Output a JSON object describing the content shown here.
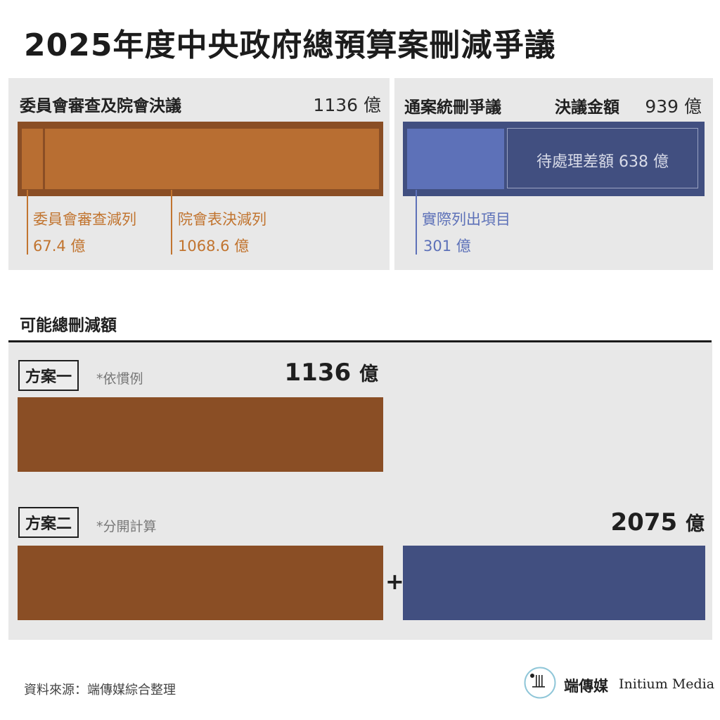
{
  "title": "2025年度中央政府總預算案刪減爭議",
  "left_panel": {
    "label": "委員會審查及院會決議",
    "total": "1136 億",
    "segments": [
      {
        "label": "委員會審查減列",
        "value_text": "67.4 億"
      },
      {
        "label": "院會表決減列",
        "value_text": "1068.6 億"
      }
    ]
  },
  "right_panel": {
    "label": "通案統刪爭議",
    "total_label": "決議金額",
    "total": "939 億",
    "pending_label": "待處理差額 638 億",
    "listed_label": "實際列出項目",
    "listed_value": "301 億"
  },
  "section_title": "可能總刪減額",
  "plans": [
    {
      "name": "方案一",
      "note": "*依慣例",
      "total_num": "1136",
      "total_unit": "億"
    },
    {
      "name": "方案二",
      "note": "*分開計算",
      "total_num": "2075",
      "total_unit": "億",
      "plus": "+"
    }
  ],
  "footer": {
    "source": "資料來源：端傳媒綜合整理",
    "logo_cn": "端傳媒",
    "logo_en": "Initium Media"
  },
  "colors": {
    "orange": "#b86e32",
    "brown": "#8a4e25",
    "blue": "#414f80",
    "light_blue": "#5d71b8"
  },
  "chart_data": [
    {
      "type": "bar",
      "stacked": true,
      "categories": [
        "委員會審查及院會決議"
      ],
      "series": [
        {
          "name": "委員會審查減列",
          "values": [
            67.4
          ]
        },
        {
          "name": "院會表決減列",
          "values": [
            1068.6
          ]
        }
      ],
      "total": 1136
    },
    {
      "type": "bar",
      "stacked": true,
      "categories": [
        "通案統刪爭議"
      ],
      "series": [
        {
          "name": "實際列出項目",
          "values": [
            301
          ]
        },
        {
          "name": "待處理差額",
          "values": [
            638
          ]
        }
      ],
      "total": 939
    },
    {
      "type": "bar",
      "stacked": true,
      "categories": [
        "方案一",
        "方案二"
      ],
      "series": [
        {
          "name": "委員會審查及院會決議",
          "values": [
            1136,
            1136
          ]
        },
        {
          "name": "通案統刪爭議",
          "values": [
            0,
            939
          ]
        }
      ],
      "totals": [
        1136,
        2075
      ]
    }
  ]
}
